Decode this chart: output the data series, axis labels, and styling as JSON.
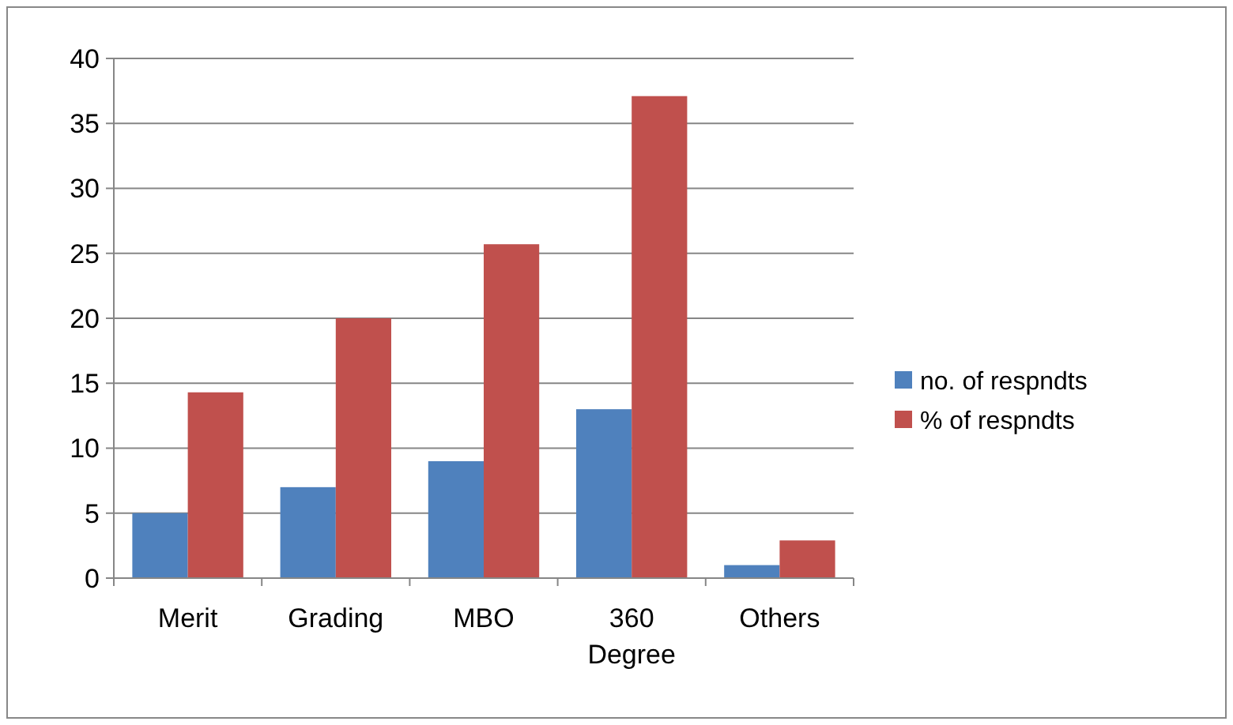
{
  "chart_data": {
    "type": "bar",
    "categories": [
      "Merit",
      "Grading",
      "MBO",
      "360 Degree",
      "Others"
    ],
    "series": [
      {
        "name": "no. of respndts",
        "color": "#4f81bd",
        "values": [
          5,
          7,
          9,
          13,
          1
        ]
      },
      {
        "name": "% of respndts",
        "color": "#c0504d",
        "values": [
          14.3,
          20,
          25.7,
          37.1,
          2.9
        ]
      }
    ],
    "ylim": [
      0,
      40
    ],
    "yticks": [
      0,
      5,
      10,
      15,
      20,
      25,
      30,
      35,
      40
    ],
    "grid": "y",
    "legend": "right"
  }
}
